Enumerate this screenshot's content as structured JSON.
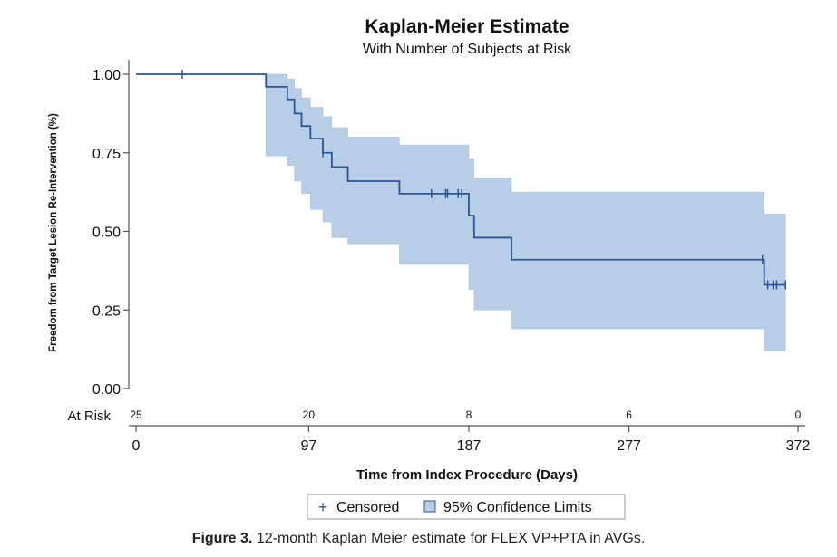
{
  "chart_data": {
    "type": "line",
    "subtype": "kaplan-meier",
    "title": "Kaplan-Meier Estimate",
    "subtitle": "With Number of Subjects at Risk",
    "xlabel": "Time from Index Procedure (Days)",
    "ylabel": "Freedom from Target Lesion Re-Intervention (%)",
    "xlim": [
      0,
      372
    ],
    "ylim": [
      0,
      1
    ],
    "x_ticks": [
      0,
      97,
      187,
      277,
      372
    ],
    "y_ticks": [
      0.0,
      0.25,
      0.5,
      0.75,
      1.0
    ],
    "y_tick_labels": [
      "0.00",
      "0.25",
      "0.50",
      "0.75",
      "1.00"
    ],
    "survival_steps": [
      {
        "x": 0,
        "y": 1.0
      },
      {
        "x": 73,
        "y": 0.96
      },
      {
        "x": 85,
        "y": 0.92
      },
      {
        "x": 89,
        "y": 0.875
      },
      {
        "x": 93,
        "y": 0.835
      },
      {
        "x": 98,
        "y": 0.795
      },
      {
        "x": 105,
        "y": 0.75
      },
      {
        "x": 110,
        "y": 0.705
      },
      {
        "x": 119,
        "y": 0.66
      },
      {
        "x": 148,
        "y": 0.62
      },
      {
        "x": 187,
        "y": 0.55
      },
      {
        "x": 190,
        "y": 0.48
      },
      {
        "x": 211,
        "y": 0.41
      },
      {
        "x": 353,
        "y": 0.33
      },
      {
        "x": 365,
        "y": 0.33
      }
    ],
    "ci_steps": [
      {
        "x": 0,
        "lower": 1.0,
        "upper": 1.0
      },
      {
        "x": 73,
        "lower": 0.74,
        "upper": 1.0
      },
      {
        "x": 85,
        "lower": 0.71,
        "upper": 0.985
      },
      {
        "x": 89,
        "lower": 0.66,
        "upper": 0.955
      },
      {
        "x": 93,
        "lower": 0.62,
        "upper": 0.925
      },
      {
        "x": 98,
        "lower": 0.57,
        "upper": 0.895
      },
      {
        "x": 105,
        "lower": 0.53,
        "upper": 0.865
      },
      {
        "x": 110,
        "lower": 0.48,
        "upper": 0.83
      },
      {
        "x": 119,
        "lower": 0.46,
        "upper": 0.8
      },
      {
        "x": 148,
        "lower": 0.395,
        "upper": 0.775
      },
      {
        "x": 187,
        "lower": 0.315,
        "upper": 0.73
      },
      {
        "x": 190,
        "lower": 0.25,
        "upper": 0.67
      },
      {
        "x": 211,
        "lower": 0.19,
        "upper": 0.625
      },
      {
        "x": 353,
        "lower": 0.12,
        "upper": 0.555
      },
      {
        "x": 365,
        "lower": 0.12,
        "upper": 0.555
      }
    ],
    "censored": [
      {
        "x": 26,
        "y": 1.0
      },
      {
        "x": 105,
        "y": 0.75
      },
      {
        "x": 166,
        "y": 0.62
      },
      {
        "x": 174,
        "y": 0.62
      },
      {
        "x": 175,
        "y": 0.62
      },
      {
        "x": 181,
        "y": 0.62
      },
      {
        "x": 183,
        "y": 0.62
      },
      {
        "x": 352,
        "y": 0.41
      },
      {
        "x": 355,
        "y": 0.33
      },
      {
        "x": 358,
        "y": 0.33
      },
      {
        "x": 360,
        "y": 0.33
      },
      {
        "x": 365,
        "y": 0.33
      }
    ],
    "at_risk": {
      "label": "At Risk",
      "points": [
        {
          "x": 0,
          "n": "25"
        },
        {
          "x": 97,
          "n": "20"
        },
        {
          "x": 187,
          "n": "8"
        },
        {
          "x": 277,
          "n": "6"
        },
        {
          "x": 372,
          "n": "0"
        }
      ]
    },
    "legend": {
      "position": "bottom",
      "entries": [
        {
          "symbol": "+",
          "label": "Censored"
        },
        {
          "symbol": "box",
          "label": "95% Confidence Limits"
        }
      ]
    },
    "colors": {
      "line": "#2d5597",
      "band": "#b8cde6",
      "band_edge": "#a7bfdf",
      "axis": "#555555",
      "text": "#111111"
    }
  },
  "caption": {
    "label": "Figure 3.",
    "text": " 12-month Kaplan Meier estimate for FLEX VP+PTA in AVGs."
  }
}
